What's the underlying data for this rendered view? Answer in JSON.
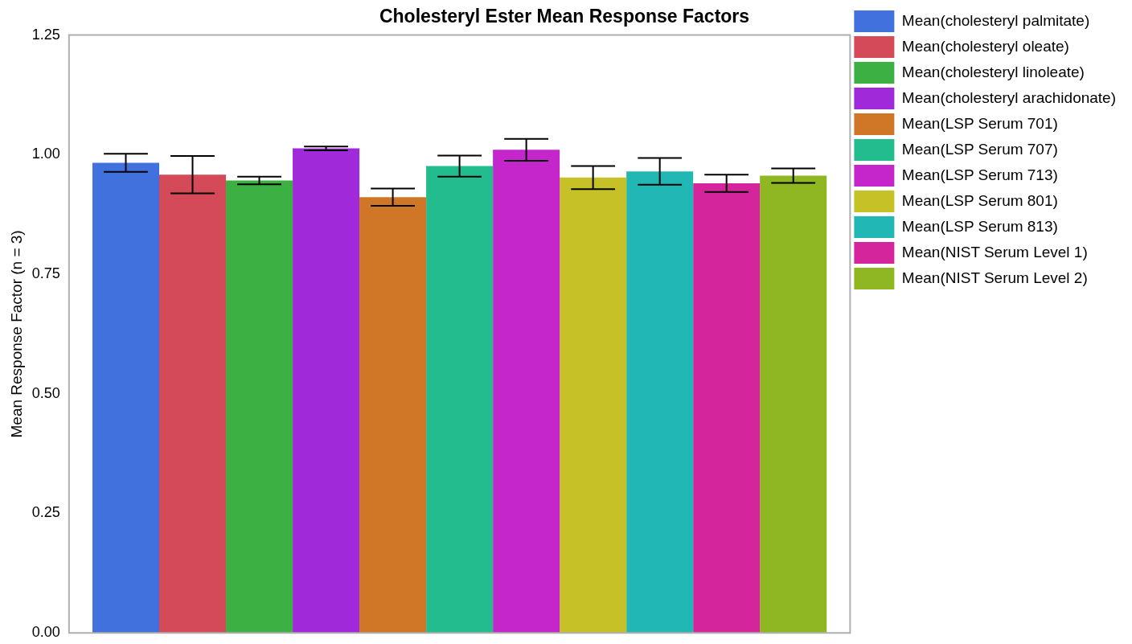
{
  "chart_data": {
    "type": "bar",
    "title": "Cholesteryl Ester Mean Response Factors",
    "ylabel": "Mean Response Factor (n = 3)",
    "categories": [
      null
    ],
    "series": [
      {
        "name": "Mean(cholesteryl palmitate)",
        "color": "#4171dd",
        "values": [
          0.983
        ],
        "errors": [
          0.019
        ]
      },
      {
        "name": "Mean(cholesteryl oleate)",
        "color": "#d44a58",
        "values": [
          0.958
        ],
        "errors": [
          0.039
        ]
      },
      {
        "name": "Mean(cholesteryl linoleate)",
        "color": "#3cb043",
        "values": [
          0.946
        ],
        "errors": [
          0.008
        ]
      },
      {
        "name": "Mean(cholesteryl arachidonate)",
        "color": "#a02ad9",
        "values": [
          1.013
        ],
        "errors": [
          0.004
        ]
      },
      {
        "name": "Mean(LSP Serum 701)",
        "color": "#cf7726",
        "values": [
          0.911
        ],
        "errors": [
          0.018
        ]
      },
      {
        "name": "Mean(LSP Serum 707)",
        "color": "#22bc8f",
        "values": [
          0.976
        ],
        "errors": [
          0.022
        ]
      },
      {
        "name": "Mean(LSP Serum 713)",
        "color": "#c526cc",
        "values": [
          1.01
        ],
        "errors": [
          0.023
        ]
      },
      {
        "name": "Mean(LSP Serum 801)",
        "color": "#c7c128",
        "values": [
          0.952
        ],
        "errors": [
          0.024
        ]
      },
      {
        "name": "Mean(LSP Serum 813)",
        "color": "#20b7b4",
        "values": [
          0.965
        ],
        "errors": [
          0.028
        ]
      },
      {
        "name": "Mean(NIST Serum Level 1)",
        "color": "#d4259c",
        "values": [
          0.94
        ],
        "errors": [
          0.018
        ]
      },
      {
        "name": "Mean(NIST Serum Level 2)",
        "color": "#8fb721",
        "values": [
          0.956
        ],
        "errors": [
          0.015
        ]
      }
    ],
    "ylim": [
      0,
      1.25
    ],
    "yticks": [
      {
        "value": 0,
        "label": "0.00"
      },
      {
        "value": 0.25,
        "label": "0.25"
      },
      {
        "value": 0.5,
        "label": "0.50"
      },
      {
        "value": 0.75,
        "label": "0.75"
      },
      {
        "value": 1,
        "label": "1.00"
      },
      {
        "value": 1.25,
        "label": "1.25"
      }
    ],
    "legend": "top right",
    "tick_labels": "y"
  }
}
